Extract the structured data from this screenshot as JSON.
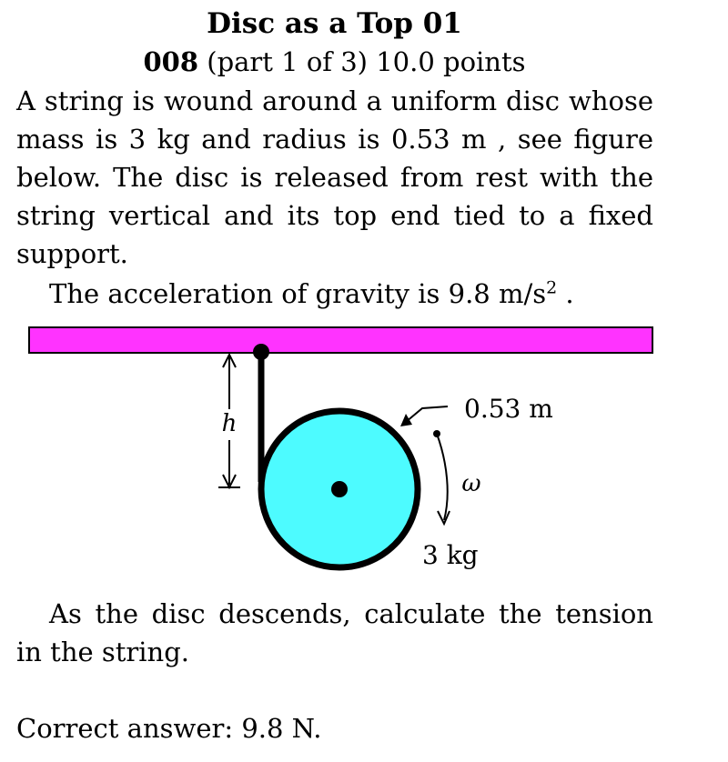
{
  "header": {
    "title": "Disc as a Top 01",
    "problem_number": "008",
    "problem_part": "(part 1 of 3) 10.0 points"
  },
  "problem": {
    "statement": "A string is wound around a uniform disc whose mass is 3 kg and radius is 0.53 m , see figure below. The disc is released from rest with the string vertical and its top end tied to a fixed support.",
    "gravity_prefix": "The acceleration of gravity is 9.8 m/s",
    "gravity_exponent": "2",
    "gravity_suffix": " .",
    "question": "As the disc descends, calculate the tension in the string."
  },
  "figure": {
    "radius_label": "0.53 m",
    "height_label": "h",
    "angular_label": "ω",
    "mass_label": "3 kg",
    "colors": {
      "support": "#ff33ff",
      "disc": "#4dfbff",
      "stroke": "#000000"
    }
  },
  "answer": {
    "text": "Correct answer: 9.8 N."
  }
}
